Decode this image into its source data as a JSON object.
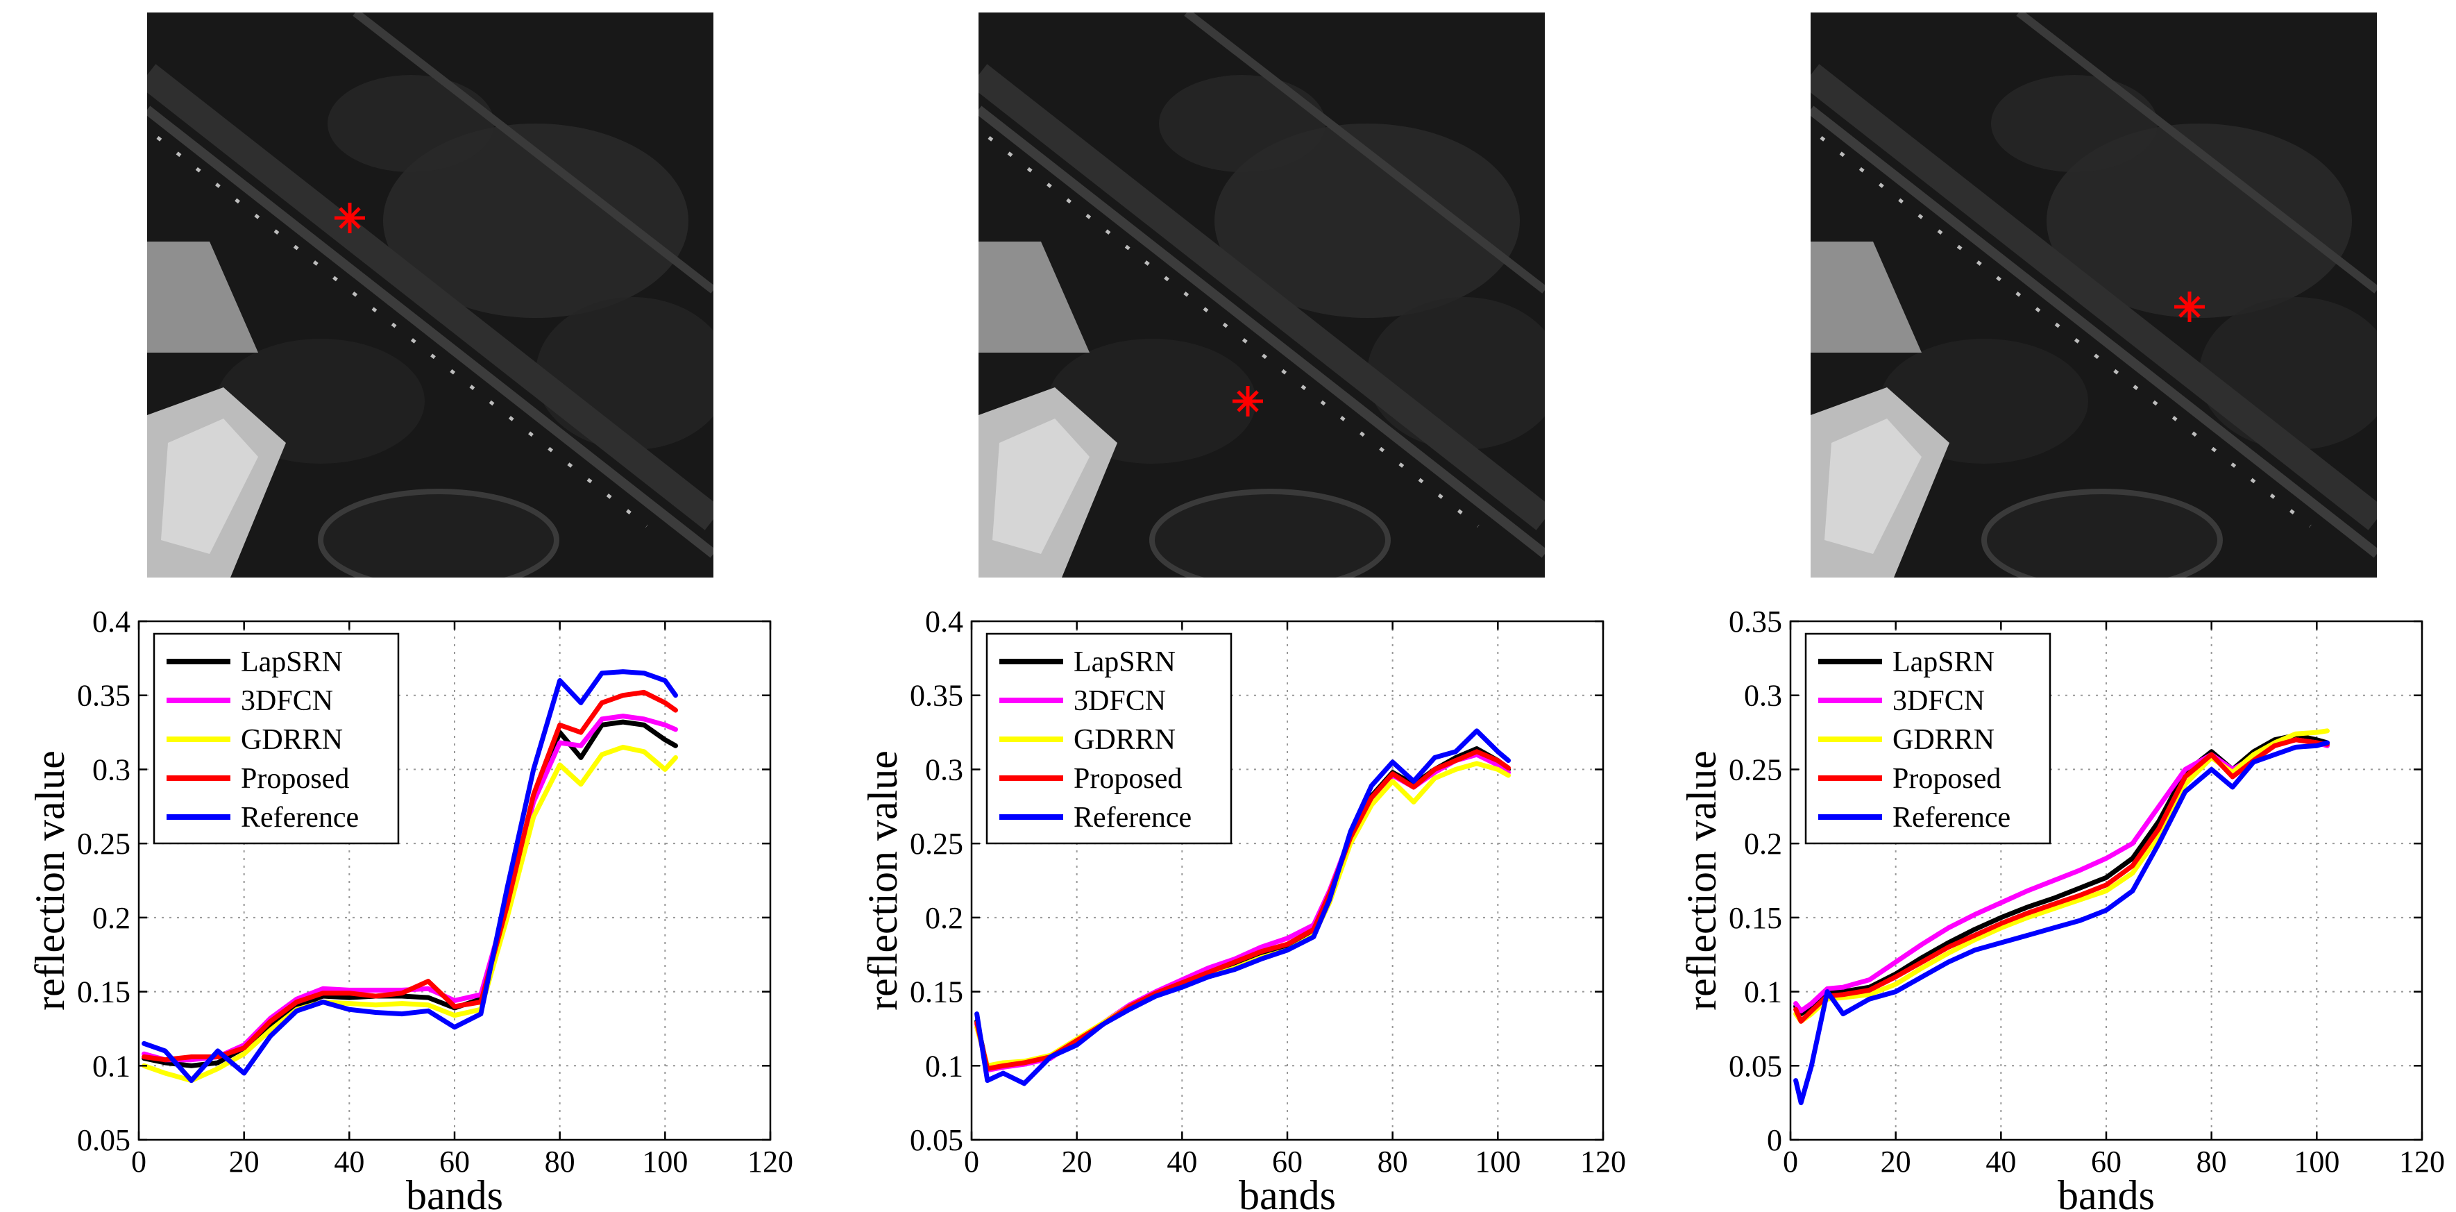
{
  "colors": {
    "LapSRN": "#000000",
    "3DFCN": "#ff00ff",
    "GDRRN": "#ffff00",
    "Proposed": "#ff0000",
    "Reference": "#0000ff",
    "marker": "#ff0000"
  },
  "images": [
    {
      "name": "pixel-location-1",
      "marker_icon": "red-asterisk-marker"
    },
    {
      "name": "pixel-location-2",
      "marker_icon": "red-asterisk-marker"
    },
    {
      "name": "pixel-location-3",
      "marker_icon": "red-asterisk-marker"
    }
  ],
  "chart_data": [
    {
      "type": "line",
      "title": "",
      "xlabel": "bands",
      "ylabel": "reflection value",
      "xlim": [
        0,
        120
      ],
      "ylim": [
        0.05,
        0.4
      ],
      "xticks": [
        0,
        20,
        40,
        60,
        80,
        100,
        120
      ],
      "yticks": [
        0.05,
        0.1,
        0.15,
        0.2,
        0.25,
        0.3,
        0.35,
        0.4
      ],
      "ytick_labels": [
        "0.05",
        "0.1",
        "0.15",
        "0.2",
        "0.25",
        "0.3",
        "0.35",
        "0.4"
      ],
      "grid": true,
      "legend": "top-left",
      "x": [
        1,
        5,
        10,
        15,
        20,
        25,
        30,
        35,
        40,
        45,
        50,
        55,
        60,
        65,
        70,
        75,
        80,
        84,
        88,
        92,
        96,
        100,
        102
      ],
      "series": [
        {
          "name": "LapSRN",
          "values": [
            0.105,
            0.102,
            0.1,
            0.102,
            0.112,
            0.128,
            0.14,
            0.147,
            0.146,
            0.147,
            0.147,
            0.146,
            0.139,
            0.145,
            0.21,
            0.28,
            0.325,
            0.308,
            0.33,
            0.332,
            0.33,
            0.32,
            0.316
          ]
        },
        {
          "name": "3DFCN",
          "values": [
            0.108,
            0.104,
            0.104,
            0.106,
            0.114,
            0.132,
            0.145,
            0.152,
            0.151,
            0.151,
            0.151,
            0.152,
            0.144,
            0.148,
            0.21,
            0.278,
            0.318,
            0.316,
            0.334,
            0.336,
            0.334,
            0.33,
            0.327
          ]
        },
        {
          "name": "GDRRN",
          "values": [
            0.1,
            0.095,
            0.09,
            0.098,
            0.108,
            0.124,
            0.138,
            0.143,
            0.142,
            0.141,
            0.142,
            0.141,
            0.134,
            0.138,
            0.2,
            0.268,
            0.303,
            0.29,
            0.31,
            0.315,
            0.312,
            0.3,
            0.308
          ]
        },
        {
          "name": "Proposed",
          "values": [
            0.106,
            0.104,
            0.106,
            0.106,
            0.112,
            0.13,
            0.143,
            0.149,
            0.149,
            0.147,
            0.149,
            0.157,
            0.14,
            0.143,
            0.208,
            0.283,
            0.33,
            0.325,
            0.345,
            0.35,
            0.352,
            0.345,
            0.34
          ]
        },
        {
          "name": "Reference",
          "values": [
            0.115,
            0.11,
            0.09,
            0.11,
            0.095,
            0.12,
            0.137,
            0.143,
            0.138,
            0.136,
            0.135,
            0.137,
            0.126,
            0.135,
            0.22,
            0.3,
            0.36,
            0.345,
            0.365,
            0.366,
            0.365,
            0.36,
            0.35
          ]
        }
      ]
    },
    {
      "type": "line",
      "title": "",
      "xlabel": "bands",
      "ylabel": "reflection value",
      "xlim": [
        0,
        120
      ],
      "ylim": [
        0.05,
        0.4
      ],
      "xticks": [
        0,
        20,
        40,
        60,
        80,
        100,
        120
      ],
      "yticks": [
        0.05,
        0.1,
        0.15,
        0.2,
        0.25,
        0.3,
        0.35,
        0.4
      ],
      "ytick_labels": [
        "0.05",
        "0.1",
        "0.15",
        "0.2",
        "0.25",
        "0.3",
        "0.35",
        "0.4"
      ],
      "grid": true,
      "legend": "top-left",
      "x": [
        1,
        3,
        6,
        10,
        15,
        20,
        25,
        30,
        35,
        40,
        45,
        50,
        55,
        60,
        65,
        68,
        72,
        76,
        80,
        84,
        88,
        92,
        96,
        100,
        102
      ],
      "series": [
        {
          "name": "LapSRN",
          "values": [
            0.13,
            0.098,
            0.1,
            0.102,
            0.106,
            0.117,
            0.128,
            0.14,
            0.148,
            0.155,
            0.162,
            0.168,
            0.175,
            0.18,
            0.19,
            0.215,
            0.255,
            0.282,
            0.298,
            0.29,
            0.3,
            0.308,
            0.314,
            0.306,
            0.3
          ]
        },
        {
          "name": "3DFCN",
          "values": [
            0.128,
            0.097,
            0.099,
            0.101,
            0.105,
            0.117,
            0.129,
            0.141,
            0.15,
            0.158,
            0.166,
            0.172,
            0.18,
            0.186,
            0.195,
            0.218,
            0.255,
            0.28,
            0.296,
            0.288,
            0.298,
            0.306,
            0.31,
            0.303,
            0.298
          ]
        },
        {
          "name": "GDRRN",
          "values": [
            0.126,
            0.1,
            0.102,
            0.103,
            0.107,
            0.118,
            0.129,
            0.14,
            0.147,
            0.154,
            0.16,
            0.166,
            0.173,
            0.178,
            0.188,
            0.21,
            0.25,
            0.276,
            0.292,
            0.278,
            0.294,
            0.3,
            0.304,
            0.3,
            0.296
          ]
        },
        {
          "name": "Proposed",
          "values": [
            0.129,
            0.098,
            0.1,
            0.102,
            0.106,
            0.117,
            0.128,
            0.14,
            0.149,
            0.156,
            0.163,
            0.17,
            0.177,
            0.182,
            0.192,
            0.216,
            0.254,
            0.281,
            0.297,
            0.288,
            0.3,
            0.306,
            0.312,
            0.306,
            0.301
          ]
        },
        {
          "name": "Reference",
          "values": [
            0.135,
            0.09,
            0.095,
            0.088,
            0.106,
            0.114,
            0.128,
            0.138,
            0.147,
            0.153,
            0.16,
            0.165,
            0.172,
            0.178,
            0.187,
            0.212,
            0.258,
            0.289,
            0.305,
            0.292,
            0.308,
            0.312,
            0.326,
            0.312,
            0.306
          ]
        }
      ]
    },
    {
      "type": "line",
      "title": "",
      "xlabel": "bands",
      "ylabel": "reflection value",
      "xlim": [
        0,
        120
      ],
      "ylim": [
        0,
        0.35
      ],
      "xticks": [
        0,
        20,
        40,
        60,
        80,
        100,
        120
      ],
      "yticks": [
        0,
        0.05,
        0.1,
        0.15,
        0.2,
        0.25,
        0.3,
        0.35
      ],
      "ytick_labels": [
        "0",
        "0.05",
        "0.1",
        "0.15",
        "0.2",
        "0.25",
        "0.3",
        "0.35"
      ],
      "grid": true,
      "legend": "top-left",
      "x": [
        1,
        2,
        4,
        7,
        10,
        15,
        20,
        25,
        30,
        35,
        40,
        45,
        50,
        55,
        60,
        65,
        70,
        75,
        80,
        84,
        88,
        92,
        96,
        100,
        102
      ],
      "series": [
        {
          "name": "LapSRN",
          "values": [
            0.09,
            0.085,
            0.09,
            0.1,
            0.1,
            0.103,
            0.112,
            0.123,
            0.133,
            0.142,
            0.15,
            0.157,
            0.163,
            0.17,
            0.177,
            0.19,
            0.215,
            0.248,
            0.262,
            0.25,
            0.262,
            0.27,
            0.273,
            0.27,
            0.268
          ]
        },
        {
          "name": "3DFCN",
          "values": [
            0.092,
            0.087,
            0.092,
            0.102,
            0.103,
            0.108,
            0.12,
            0.132,
            0.143,
            0.152,
            0.16,
            0.168,
            0.175,
            0.182,
            0.19,
            0.2,
            0.225,
            0.25,
            0.26,
            0.25,
            0.258,
            0.266,
            0.27,
            0.268,
            0.266
          ]
        },
        {
          "name": "GDRRN",
          "values": [
            0.085,
            0.08,
            0.085,
            0.095,
            0.096,
            0.098,
            0.105,
            0.116,
            0.126,
            0.135,
            0.143,
            0.15,
            0.156,
            0.162,
            0.168,
            0.18,
            0.205,
            0.24,
            0.258,
            0.248,
            0.26,
            0.268,
            0.274,
            0.275,
            0.276
          ]
        },
        {
          "name": "Proposed",
          "values": [
            0.088,
            0.08,
            0.087,
            0.097,
            0.098,
            0.101,
            0.11,
            0.12,
            0.13,
            0.138,
            0.146,
            0.153,
            0.159,
            0.165,
            0.172,
            0.185,
            0.21,
            0.245,
            0.26,
            0.245,
            0.256,
            0.266,
            0.27,
            0.268,
            0.267
          ]
        },
        {
          "name": "Reference",
          "values": [
            0.04,
            0.025,
            0.05,
            0.1,
            0.085,
            0.095,
            0.1,
            0.11,
            0.12,
            0.128,
            0.133,
            0.138,
            0.143,
            0.148,
            0.155,
            0.168,
            0.2,
            0.235,
            0.25,
            0.238,
            0.255,
            0.26,
            0.265,
            0.266,
            0.268
          ]
        }
      ]
    }
  ]
}
